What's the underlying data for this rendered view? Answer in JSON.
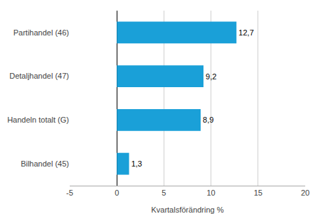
{
  "chart_data": {
    "type": "bar",
    "orientation": "horizontal",
    "categories": [
      "Bilhandel (45)",
      "Handeln totalt (G)",
      "Detaljhandel (47)",
      "Partihandel (46)"
    ],
    "values": [
      1.3,
      8.9,
      9.2,
      12.7
    ],
    "value_labels": [
      "1,3",
      "8,9",
      "9,2",
      "12,7"
    ],
    "data_labels": true,
    "color": "#1aa0d8",
    "xlabel": "Kvartalsförändring %",
    "xlim": [
      -5,
      20
    ],
    "xticks": [
      -5,
      0,
      5,
      10,
      15,
      20
    ],
    "grid": true
  }
}
